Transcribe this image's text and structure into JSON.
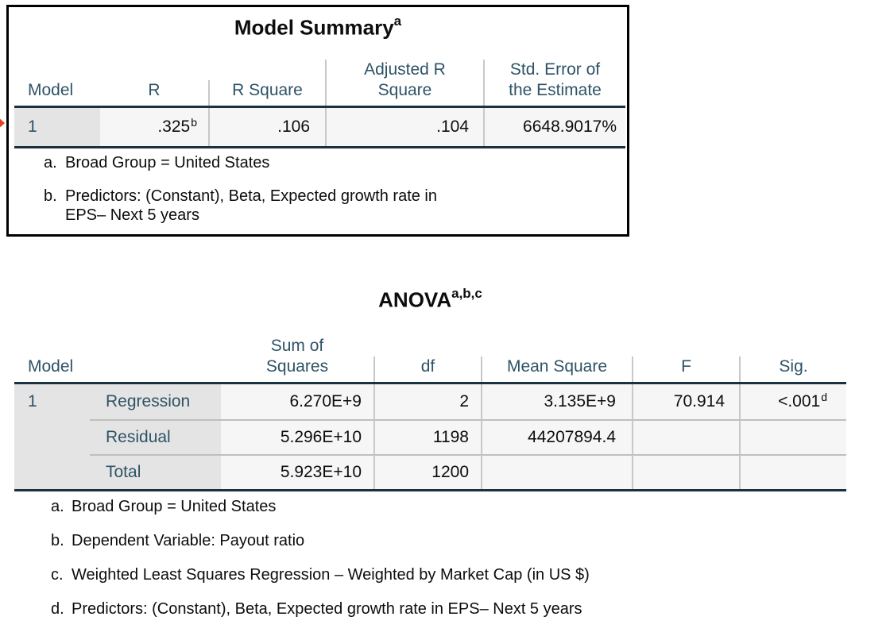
{
  "colors": {
    "header_text": "#2E5366",
    "dark_rule": "#18333F",
    "light_rule": "#C8C8C8",
    "label_bg": "#E4E4E4",
    "row_bg": "#F6F6F7",
    "value_text": "#0D0D0D",
    "arrow_red": "#E8401F",
    "box_border": "#000000"
  },
  "model_summary": {
    "title": "Model Summary",
    "title_sup": "a",
    "columns": {
      "model": "Model",
      "r": "R",
      "r_square": "R Square",
      "adjusted_line1": "Adjusted R",
      "adjusted_line2": "Square",
      "std_error_line1": "Std. Error of",
      "std_error_line2": "the Estimate"
    },
    "row": {
      "model": "1",
      "r": ".325",
      "r_sup": "b",
      "r_square": ".106",
      "adjusted_r_square": ".104",
      "std_error": "6648.9017%"
    },
    "footnotes": {
      "a_label": "a.",
      "a_text": "Broad Group = United States",
      "b_label": "b.",
      "b_line1": "Predictors: (Constant), Beta, Expected growth rate in",
      "b_line2": "EPS– Next 5 years"
    }
  },
  "anova": {
    "title": "ANOVA",
    "title_sup": "a,b,c",
    "columns": {
      "model": "Model",
      "sum_line1": "Sum of",
      "sum_line2": "Squares",
      "df": "df",
      "mean_square": "Mean Square",
      "f": "F",
      "sig": "Sig."
    },
    "rows": [
      {
        "model": "1",
        "label": "Regression",
        "sum_of_squares": "6.270E+9",
        "df": "2",
        "mean_square": "3.135E+9",
        "f": "70.914",
        "sig": "<.001",
        "sig_sup": "d"
      },
      {
        "model": "",
        "label": "Residual",
        "sum_of_squares": "5.296E+10",
        "df": "1198",
        "mean_square": "44207894.4",
        "f": "",
        "sig": ""
      },
      {
        "model": "",
        "label": "Total",
        "sum_of_squares": "5.923E+10",
        "df": "1200",
        "mean_square": "",
        "f": "",
        "sig": ""
      }
    ],
    "footnotes": [
      {
        "label": "a.",
        "text": "Broad Group = United States"
      },
      {
        "label": "b.",
        "text": "Dependent Variable: Payout ratio"
      },
      {
        "label": "c.",
        "text": "Weighted Least Squares Regression – Weighted by Market Cap (in US $)"
      },
      {
        "label": "d.",
        "text": "Predictors: (Constant), Beta, Expected growth rate in EPS– Next 5 years"
      }
    ]
  }
}
